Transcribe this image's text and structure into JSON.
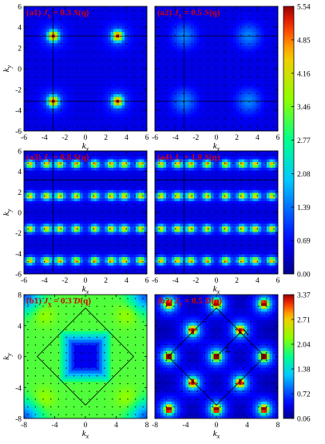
{
  "chart_data": [
    {
      "type": "heatmap",
      "title": "(a1) J_y = 0.3 S(q)",
      "title_parts": [
        "(a1) ",
        "J",
        "y",
        " = 0.3 ",
        "S",
        "(q)"
      ],
      "xlabel": "k_x",
      "ylabel": "k_y",
      "xlim": [
        -6,
        6
      ],
      "ylim": [
        -6,
        6
      ],
      "xticks": [
        "-6",
        "-4",
        "-2",
        "0",
        "2",
        "4",
        "6"
      ],
      "yticks": [
        "-6",
        "-4",
        "-2",
        "0",
        "2",
        "4",
        "6"
      ],
      "peaks": [
        {
          "x": -3.14,
          "y": 3.14,
          "value": 5.5
        },
        {
          "x": 3.14,
          "y": 3.14,
          "value": 5.5
        },
        {
          "x": -3.14,
          "y": -3.14,
          "value": 5.5
        },
        {
          "x": 3.14,
          "y": -3.14,
          "value": 5.5
        }
      ],
      "background": 0.5,
      "guide_lines": {
        "vertical": [
          -3.14
        ],
        "horizontal": [
          3.14,
          -3.14
        ]
      },
      "colorbar": {
        "min": 0.0,
        "max": 5.54,
        "ticks": [
          "5.54",
          "4.85",
          "4.16",
          "3.46",
          "2.77",
          "2.08",
          "1.39",
          "0.69",
          "0.00"
        ]
      }
    },
    {
      "type": "heatmap",
      "title": "(a2) J_y = 0.5 S(q)",
      "title_parts": [
        "(a2) ",
        "J",
        "y",
        " = 0.5 ",
        "S",
        "(q)"
      ],
      "xlabel": "k_x",
      "ylabel": "",
      "xlim": [
        -6,
        6
      ],
      "ylim": [
        -6,
        6
      ],
      "xticks": [
        "-6",
        "-4",
        "-2",
        "0",
        "2",
        "4",
        "6"
      ],
      "peaks": [
        {
          "x": -3.14,
          "y": 3.14,
          "value": 1.6
        },
        {
          "x": 3.14,
          "y": 3.14,
          "value": 1.6
        },
        {
          "x": -3.14,
          "y": -3.14,
          "value": 1.6
        },
        {
          "x": 3.14,
          "y": -3.14,
          "value": 1.6
        }
      ],
      "background": 0.5,
      "guide_lines": {
        "vertical": [
          -3.14
        ],
        "horizontal": [
          3.14,
          -3.14
        ]
      },
      "colorbar": "shared"
    },
    {
      "type": "heatmap",
      "title": "(a3) J_y = 0.8 S(q)",
      "title_parts": [
        "(a3) ",
        "J",
        "y",
        " = 0.8 ",
        "S",
        "(q)"
      ],
      "xlabel": "k_x",
      "ylabel": "k_y",
      "xlim": [
        -6,
        6
      ],
      "ylim": [
        -6,
        6
      ],
      "xticks": [
        "-6",
        "-4",
        "-2",
        "0",
        "2",
        "4",
        "6"
      ],
      "yticks": [
        "-6",
        "-4",
        "-2",
        "0",
        "2",
        "4",
        "6"
      ],
      "peak_rows_y": [
        4.7,
        1.6,
        -1.6,
        -4.7
      ],
      "peak_cols_x": [
        -5.4,
        -3.8,
        -2.5,
        -0.9,
        0.9,
        2.5,
        3.8,
        5.4
      ],
      "peak_value": 4.2,
      "background": 0.45,
      "guide_lines": {
        "vertical": [
          -3.14
        ],
        "horizontal": [
          3.14
        ]
      },
      "colorbar": "shared"
    },
    {
      "type": "heatmap",
      "title": "(a4) J_y = 1.0 S(q)",
      "title_parts": [
        "(a4) ",
        "J",
        "y",
        " = 1.0 ",
        "S",
        "(q)"
      ],
      "xlabel": "k_x",
      "ylabel": "",
      "xlim": [
        -6,
        6
      ],
      "ylim": [
        -6,
        6
      ],
      "xticks": [
        "-6",
        "-4",
        "-2",
        "0",
        "2",
        "4",
        "6"
      ],
      "peak_rows_y": [
        4.7,
        1.6,
        -1.6,
        -4.7
      ],
      "peak_cols_x": [
        -5.4,
        -3.8,
        -2.5,
        -0.9,
        0.9,
        2.5,
        3.8,
        5.4
      ],
      "peak_value": 4.2,
      "background": 0.45,
      "guide_lines": {
        "vertical": [
          -3.14
        ],
        "horizontal": [
          3.14
        ]
      },
      "colorbar": {
        "min": 0.0,
        "max": 5.54,
        "ticks": [
          "5.54",
          "4.85",
          "4.16",
          "3.46",
          "2.77",
          "2.08",
          "1.39",
          "0.69",
          "0.00"
        ]
      }
    },
    {
      "type": "heatmap",
      "title": "(b1) J_y = 0.3 D(q)",
      "title_parts": [
        "(b1) ",
        "J",
        "y",
        " = 0.3 ",
        "D",
        "(q)"
      ],
      "xlabel": "k_x",
      "ylabel": "k_y",
      "xlim": [
        -8,
        8
      ],
      "ylim": [
        -8,
        8
      ],
      "xticks": [
        "-8",
        "-4",
        "0",
        "4",
        "8"
      ],
      "yticks": [
        "-8",
        "-4",
        "0",
        "4",
        "8"
      ],
      "dominant_value": 2.0,
      "low_regions": [
        {
          "x": 0,
          "y": 0,
          "value": 0.4
        },
        {
          "x": -8,
          "y": 8,
          "value": 0.6
        },
        {
          "x": 8,
          "y": 8,
          "value": 0.6
        },
        {
          "x": -8,
          "y": -8,
          "value": 0.6
        },
        {
          "x": 8,
          "y": -8,
          "value": 0.6
        }
      ],
      "diamond_vertices": [
        [
          0,
          6.28
        ],
        [
          6.28,
          0
        ],
        [
          0,
          -6.28
        ],
        [
          -6.28,
          0
        ]
      ],
      "colorbar": "shared"
    },
    {
      "type": "heatmap",
      "title": "(b2) J_y = 0.5 D(q)",
      "title_parts": [
        "(b2) ",
        "J",
        "y",
        " = 0.5 ",
        "D",
        "(q)"
      ],
      "xlabel": "k_x",
      "ylabel": "",
      "xlim": [
        -8,
        8
      ],
      "ylim": [
        -8,
        8
      ],
      "xticks": [
        "-8",
        "-4",
        "0",
        "4",
        "8"
      ],
      "peaks": [
        {
          "x": -6.2,
          "y": 6.8
        },
        {
          "x": 0,
          "y": 6.8
        },
        {
          "x": 6.2,
          "y": 6.8
        },
        {
          "x": -3.1,
          "y": 3.4
        },
        {
          "x": 3.1,
          "y": 3.4
        },
        {
          "x": -6.2,
          "y": 0
        },
        {
          "x": 0,
          "y": 0
        },
        {
          "x": 6.2,
          "y": 0
        },
        {
          "x": -3.1,
          "y": -3.4
        },
        {
          "x": 3.1,
          "y": -3.4
        },
        {
          "x": -6.2,
          "y": -6.8
        },
        {
          "x": 0,
          "y": -6.8
        },
        {
          "x": 6.2,
          "y": -6.8
        }
      ],
      "peak_value": 3.3,
      "background": 0.2,
      "diamond_vertices": [
        [
          0,
          6.28
        ],
        [
          6.28,
          0
        ],
        [
          0,
          -6.28
        ],
        [
          -6.28,
          0
        ]
      ],
      "path_labels": [
        {
          "text": "X",
          "x": 3.14,
          "y": 3.14
        },
        {
          "text": "Σ",
          "x": 0.8,
          "y": 1.0
        }
      ],
      "colorbar": {
        "min": 0.06,
        "max": 3.37,
        "ticks": [
          "3.37",
          "2.71",
          "2.04",
          "1.38",
          "0.72",
          "0.06"
        ]
      }
    }
  ]
}
